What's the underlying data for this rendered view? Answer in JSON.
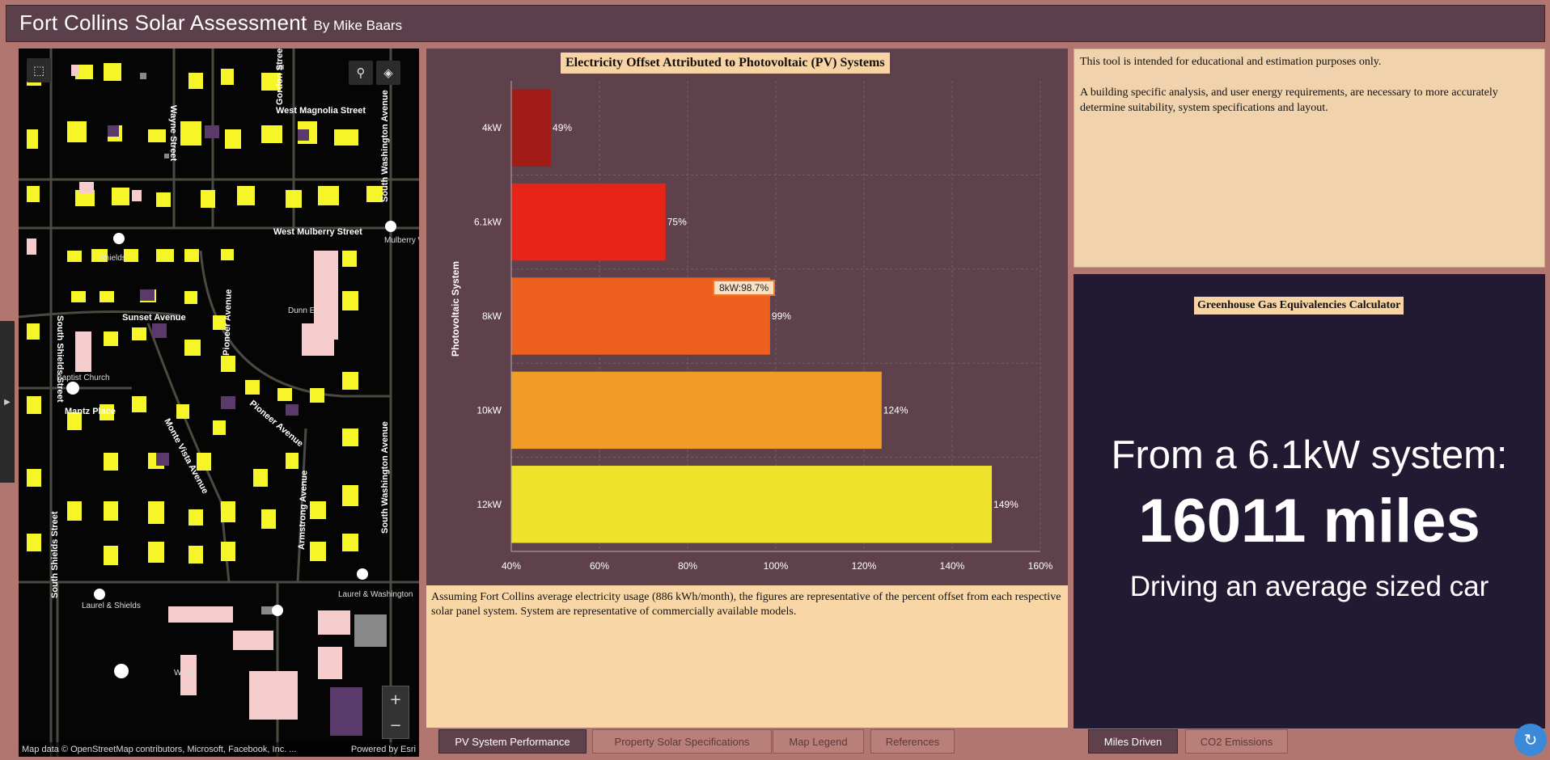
{
  "header": {
    "title": "Fort Collins Solar Assessment",
    "author": "By Mike Baars"
  },
  "map": {
    "street_labels": [
      "West Magnolia Street",
      "West Mulberry Street",
      "Sunset Avenue",
      "Mantz Place",
      "Pioneer Avenue",
      "Monte Vista Avenue",
      "Armstrong Avenue",
      "South Shields Street",
      "South Washington Avenue",
      "Gordon Street",
      "Wayne Street",
      "Dunn El..."
    ],
    "poi_labels": [
      "Shields",
      "Baptist Church",
      "Mulberry Washing",
      "Laurel & Shields",
      "Laurel & Washington",
      "W...all"
    ],
    "attribution": "Map data © OpenStreetMap contributors, Microsoft, Facebook, Inc. ...",
    "powered_by": "Powered by Esri",
    "zoom_in": "+",
    "zoom_out": "−",
    "colors": {
      "background": "#050505",
      "rooftop": "#f5f528",
      "building": "#f6cccc",
      "purple": "#5a3a6a"
    }
  },
  "chart_data": {
    "type": "bar",
    "orientation": "horizontal",
    "title": "Electricity Offset Attributed to Photovoltaic (PV) Systems",
    "ylabel": "Photovoltaic System",
    "categories": [
      "4kW",
      "6.1kW",
      "8kW",
      "10kW",
      "12kW"
    ],
    "values": [
      49,
      75,
      98.7,
      124,
      149
    ],
    "data_labels": [
      "49%",
      "75%",
      "99%",
      "124%",
      "149%"
    ],
    "colors": [
      "#a11c16",
      "#e82419",
      "#ed5f1c",
      "#f19c27",
      "#eee22a"
    ],
    "xlim": [
      40,
      160
    ],
    "xticks": [
      40,
      60,
      80,
      100,
      120,
      140,
      160
    ],
    "xtick_labels": [
      "40%",
      "60%",
      "80%",
      "100%",
      "120%",
      "140%",
      "160%"
    ],
    "grid": true,
    "tooltip": "8kW:98.7%"
  },
  "chart_note": "Assuming Fort Collins average electricity usage (886 kWh/month), the figures are representative of the percent offset from each respective solar panel system. System are representative of commercially available models.",
  "disclaimer": {
    "p1": "This tool is intended for educational and estimation purposes only.",
    "p2": "A building specific analysis, and user energy requirements, are necessary to more accurately determine suitability, system specifications and layout."
  },
  "ghg": {
    "title": "Greenhouse Gas Equivalencies Calculator",
    "line1": "From a 6.1kW system:",
    "line2": "16011 miles",
    "line3": "Driving an average sized car"
  },
  "tabs": {
    "pv": "PV System Performance",
    "property": "Property Solar Specifications",
    "legend": "Map Legend",
    "references": "References",
    "miles": "Miles Driven",
    "co2": "CO2 Emissions"
  }
}
